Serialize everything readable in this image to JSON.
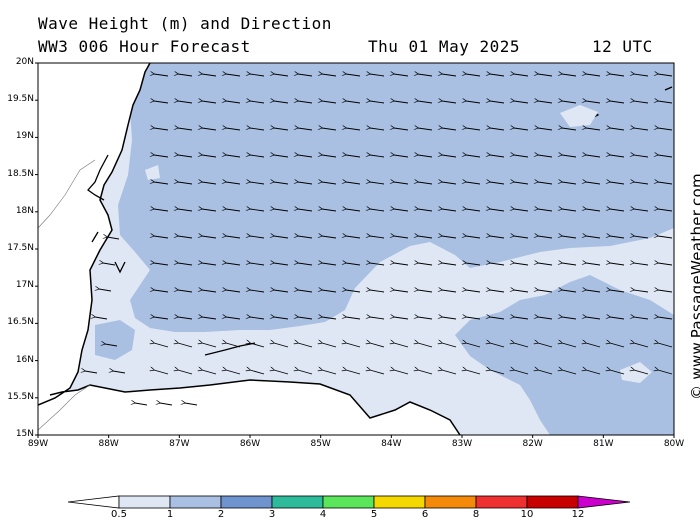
{
  "header": {
    "title_line1": "Wave Height (m) and Direction",
    "title_line2": "WW3 006 Hour Forecast",
    "date": "Thu 01 May 2025",
    "utc": "12 UTC"
  },
  "watermark": "© www.PassageWeather.com",
  "axes": {
    "y_ticks": [
      "20N",
      "19.5N",
      "19N",
      "18.5N",
      "18N",
      "17.5N",
      "17N",
      "16.5N",
      "16N",
      "15.5N",
      "15N"
    ],
    "x_ticks": [
      "89W",
      "88W",
      "87W",
      "86W",
      "85W",
      "84W",
      "83W",
      "82W",
      "81W",
      "80W"
    ],
    "lat_range": [
      15,
      20
    ],
    "lon_range": [
      -89,
      -80
    ]
  },
  "legend": {
    "labels": [
      "0.5",
      "1",
      "2",
      "3",
      "4",
      "5",
      "6",
      "8",
      "10",
      "12"
    ],
    "colors": [
      "#ffffff",
      "#dfe7f5",
      "#a9c0e2",
      "#6f93cf",
      "#2dbb9b",
      "#5ae55a",
      "#f5d800",
      "#f58a0a",
      "#ee3030",
      "#c80000",
      "#cc00cc"
    ]
  },
  "map": {
    "wave_direction": "from east (arrows pointing west)",
    "sea_colors": {
      "low": "#dfe7f5",
      "mid": "#a9c0e2"
    },
    "land_color": "#ffffff",
    "coast_color": "#000000"
  }
}
